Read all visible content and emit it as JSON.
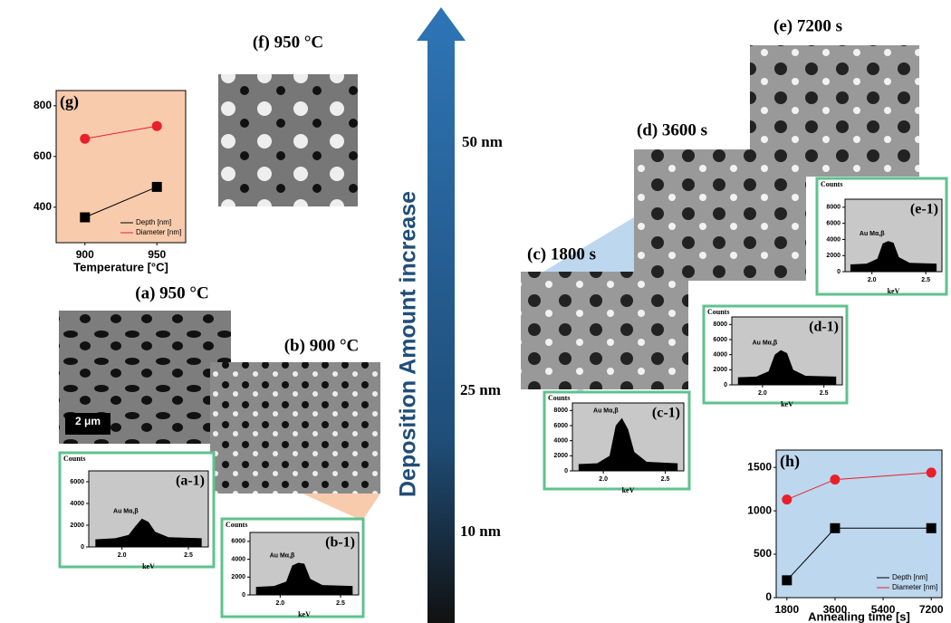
{
  "arrow_label": "Deposition Amount increase",
  "thickness_labels": [
    "50 nm",
    "25 nm",
    "10 nm"
  ],
  "panels": [
    "(f) 950 °C",
    "(a) 950 °C",
    "(b) 900 °C",
    "(c) 1800 s",
    "(d) 3600 s",
    "(e) 7200 s"
  ],
  "scale_bar": "2 μm",
  "chart_data": [
    {
      "type": "line",
      "panel_label": "(g)",
      "x_label": "Temperature [°C]",
      "background": "#f8cbad",
      "x": [
        900,
        950
      ],
      "xlim": [
        880,
        970
      ],
      "xticks": [
        900,
        950
      ],
      "ylim": [
        260,
        860
      ],
      "yticks": [
        400,
        600,
        800
      ],
      "legend": "lower right",
      "series": [
        {
          "name": "Depth [nm]",
          "color": "#000000",
          "values": [
            360,
            480
          ]
        },
        {
          "name": "Diameter [nm]",
          "color": "#e8202a",
          "values": [
            670,
            720
          ]
        }
      ]
    },
    {
      "type": "line",
      "panel_label": "(h)",
      "x_label": "Annealing time [s]",
      "background": "#bdd7ee",
      "x": [
        1800,
        3600,
        7200
      ],
      "xlim": [
        1400,
        7600
      ],
      "xticks": [
        1800,
        3600,
        5400,
        7200
      ],
      "ylim": [
        0,
        1700
      ],
      "yticks": [
        0,
        500,
        1000,
        1500
      ],
      "legend": "lower right",
      "series": [
        {
          "name": "Depth [nm]",
          "color": "#000000",
          "values": [
            200,
            800,
            800
          ]
        },
        {
          "name": "Diameter [nm]",
          "color": "#e8202a",
          "values": [
            1130,
            1360,
            1440
          ]
        }
      ]
    },
    {
      "type": "area",
      "panel_label": "(a-1)",
      "y_label": "Counts",
      "x_label": "keV",
      "annotation": "Au Mα,β",
      "color": "#000000",
      "background": "#c8c8c8",
      "x": [
        1.8,
        1.95,
        2.05,
        2.1,
        2.15,
        2.2,
        2.25,
        2.35,
        2.6
      ],
      "values": [
        700,
        800,
        1100,
        1900,
        2600,
        2300,
        1400,
        900,
        800
      ],
      "xlim": [
        1.75,
        2.65
      ],
      "xticks": [
        {
          "value": 2.0,
          "label": "2.0"
        },
        2.5
      ],
      "ylim": [
        0,
        7000
      ],
      "yticks": [
        0,
        2000,
        4000,
        6000
      ]
    },
    {
      "type": "area",
      "panel_label": "(b-1)",
      "y_label": "Counts",
      "x_label": "keV",
      "annotation": "Au Mα,β",
      "color": "#000000",
      "background": "#c8c8c8",
      "x": [
        1.8,
        1.95,
        2.05,
        2.1,
        2.15,
        2.2,
        2.25,
        2.35,
        2.6
      ],
      "values": [
        900,
        1000,
        1500,
        3300,
        3600,
        3500,
        1800,
        1100,
        1000
      ],
      "xlim": [
        1.75,
        2.65
      ],
      "xticks": [
        {
          "value": 2.0,
          "label": "2.0"
        },
        2.5
      ],
      "ylim": [
        0,
        7000
      ],
      "yticks": [
        0,
        2000,
        4000,
        6000
      ]
    },
    {
      "type": "area",
      "panel_label": "(c-1)",
      "y_label": "Counts",
      "x_label": "keV",
      "annotation": "Au Mα,β",
      "color": "#000000",
      "background": "#c8c8c8",
      "x": [
        1.8,
        1.95,
        2.05,
        2.1,
        2.15,
        2.2,
        2.25,
        2.35,
        2.6
      ],
      "values": [
        900,
        1000,
        2000,
        6000,
        7000,
        5500,
        2500,
        1200,
        1000
      ],
      "xlim": [
        1.75,
        2.65
      ],
      "xticks": [
        {
          "value": 2.0,
          "label": "2.0"
        },
        2.5
      ],
      "ylim": [
        0,
        9000
      ],
      "yticks": [
        0,
        2000,
        4000,
        6000,
        8000
      ]
    },
    {
      "type": "area",
      "panel_label": "(d-1)",
      "y_label": "Counts",
      "x_label": "keV",
      "annotation": "Au Mα,β",
      "color": "#000000",
      "background": "#c8c8c8",
      "x": [
        1.8,
        1.95,
        2.05,
        2.1,
        2.15,
        2.2,
        2.25,
        2.35,
        2.6
      ],
      "values": [
        1000,
        1100,
        1800,
        4000,
        4600,
        4200,
        2000,
        1200,
        1100
      ],
      "xlim": [
        1.75,
        2.65
      ],
      "xticks": [
        {
          "value": 2.0,
          "label": "2.0"
        },
        2.5
      ],
      "ylim": [
        0,
        9000
      ],
      "yticks": [
        0,
        2000,
        4000,
        6000,
        8000
      ]
    },
    {
      "type": "area",
      "panel_label": "(e-1)",
      "y_label": "Counts",
      "x_label": "keV",
      "annotation": "Au Mα,β",
      "color": "#000000",
      "background": "#c8c8c8",
      "x": [
        1.8,
        1.95,
        2.05,
        2.1,
        2.15,
        2.2,
        2.25,
        2.35,
        2.6
      ],
      "values": [
        900,
        1000,
        1600,
        3500,
        3800,
        3600,
        1800,
        1100,
        1000
      ],
      "xlim": [
        1.75,
        2.65
      ],
      "xticks": [
        {
          "value": 2.0,
          "label": "2.0"
        },
        2.5
      ],
      "ylim": [
        0,
        9000
      ],
      "yticks": [
        0,
        2000,
        4000,
        6000,
        8000
      ]
    }
  ]
}
